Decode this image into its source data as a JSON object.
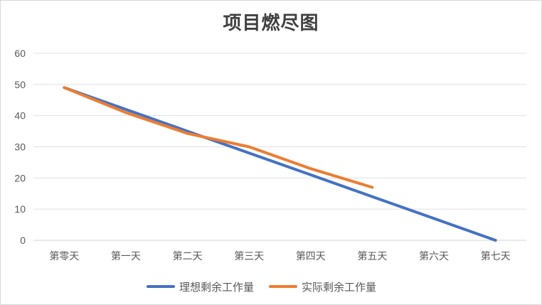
{
  "chart_data": {
    "type": "line",
    "title": "项目燃尽图",
    "categories": [
      "第零天",
      "第一天",
      "第二天",
      "第三天",
      "第四天",
      "第五天",
      "第六天",
      "第七天"
    ],
    "series": [
      {
        "name": "理想剩余工作量",
        "color": "#4472c4",
        "values": [
          49,
          42,
          35,
          28,
          21,
          14,
          7,
          0
        ]
      },
      {
        "name": "实际剩余工作量",
        "color": "#ed7d31",
        "values": [
          49,
          41,
          34.3,
          30,
          23,
          17,
          null,
          null
        ]
      }
    ],
    "yticks": [
      0,
      10,
      20,
      30,
      40,
      50,
      60
    ],
    "ylim": [
      0,
      60
    ],
    "xlabel": "",
    "ylabel": "",
    "grid": true,
    "legend_position": "bottom"
  }
}
